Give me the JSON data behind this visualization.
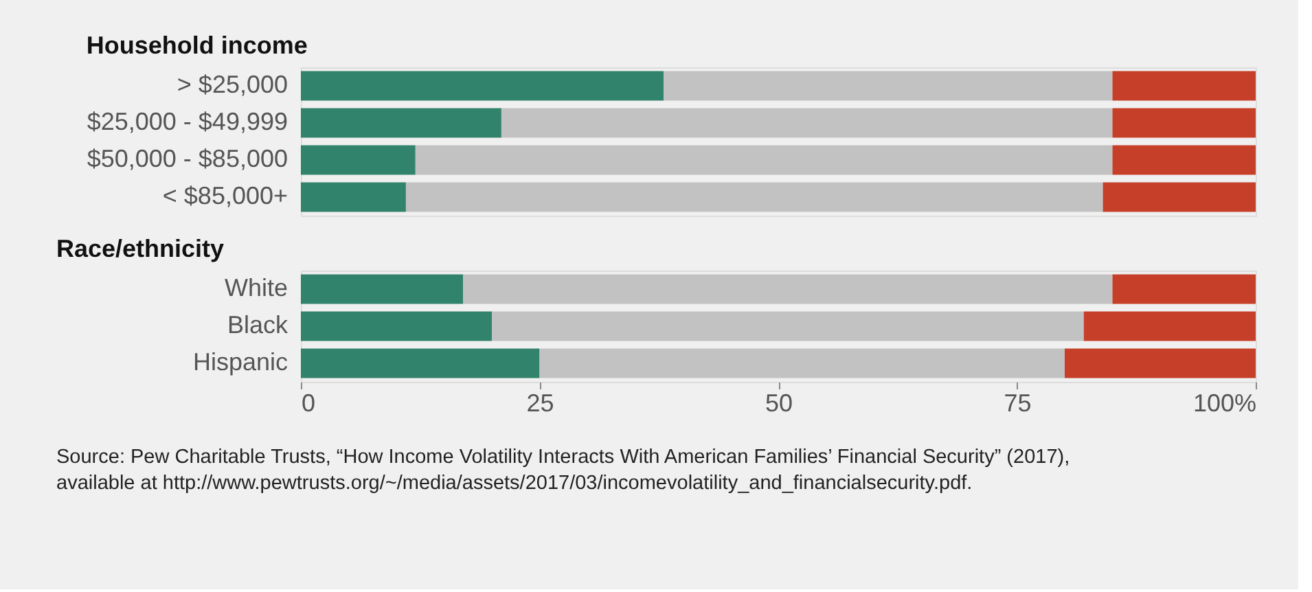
{
  "chart_data": [
    {
      "type": "bar",
      "orientation": "horizontal",
      "stacked": true,
      "title": "Household income",
      "categories": [
        "> $25,000",
        "$25,000 - $49,999",
        "$50,000 - $85,000",
        "< $85,000+"
      ],
      "series": [
        {
          "color": "#32836b",
          "values": [
            38,
            21,
            12,
            11
          ]
        },
        {
          "color": "#c2c2c2",
          "values": [
            47,
            64,
            73,
            73
          ]
        },
        {
          "color": "#c63f28",
          "values": [
            15,
            15,
            15,
            16
          ]
        }
      ],
      "xlim": [
        0,
        100
      ],
      "tick_labels": "y",
      "grid": false,
      "legend": false
    },
    {
      "type": "bar",
      "orientation": "horizontal",
      "stacked": true,
      "title": "Race/ethnicity",
      "categories": [
        "White",
        "Black",
        "Hispanic"
      ],
      "series": [
        {
          "color": "#32836b",
          "values": [
            17,
            20,
            25
          ]
        },
        {
          "color": "#c2c2c2",
          "values": [
            68,
            62,
            55
          ]
        },
        {
          "color": "#c63f28",
          "values": [
            15,
            18,
            20
          ]
        }
      ],
      "xlim": [
        0,
        100
      ],
      "xticks": [
        0,
        25,
        50,
        75,
        {
          "value": 100,
          "label": "100%"
        }
      ],
      "grid": false,
      "legend": false,
      "annotations": [
        "Source: Pew Charitable Trusts, “How Income Volatility Interacts With American Families’ Financial Security” (2017),\navailable at http://www.pewtrusts.org/~/media/assets/2017/03/incomevolatility_and_financialsecurity.pdf."
      ]
    }
  ]
}
